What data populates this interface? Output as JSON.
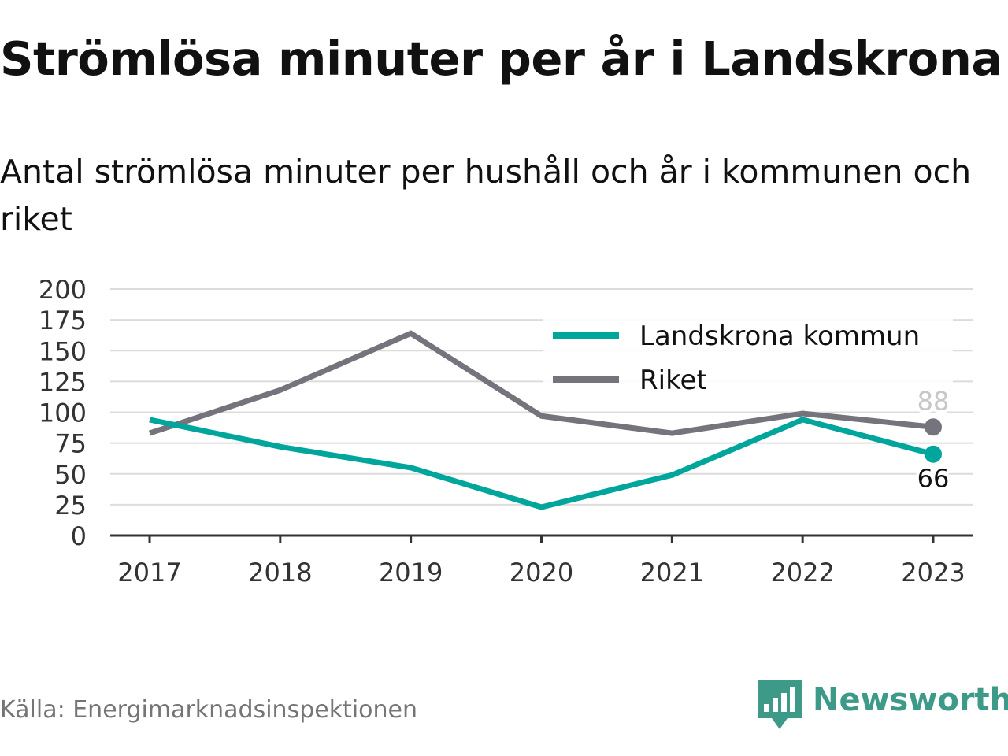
{
  "chart_data": {
    "type": "line",
    "title": "Strömlösa minuter per år i Landskrona",
    "subtitle": "Antal strömlösa minuter per hushåll och år i kommunen och riket",
    "x": [
      "2017",
      "2018",
      "2019",
      "2020",
      "2021",
      "2022",
      "2023"
    ],
    "ylim": [
      0,
      200
    ],
    "yticks": [
      0,
      25,
      50,
      75,
      100,
      125,
      150,
      175,
      200
    ],
    "grid": true,
    "legend_position": "top-right",
    "series": [
      {
        "name": "Landskrona kommun",
        "color": "#00a59b",
        "values": [
          94,
          72,
          55,
          23,
          49,
          94,
          66
        ],
        "end_label": "66"
      },
      {
        "name": "Riket",
        "color": "#75737b",
        "values": [
          83,
          118,
          164,
          97,
          83,
          99,
          88
        ],
        "end_label": "88"
      }
    ]
  },
  "footer": {
    "source": "Källa: Energimarknadsinspektionen",
    "brand": "Newsworthy",
    "brand_color": "#3d9988",
    "logo_icon": "newsworthy-bar-chart-icon"
  }
}
